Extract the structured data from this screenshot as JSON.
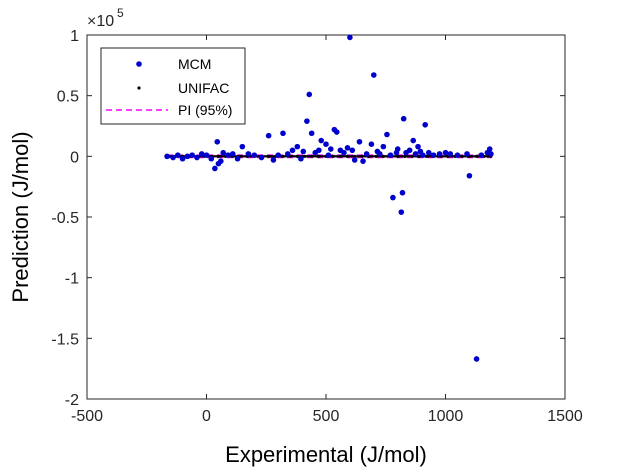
{
  "chart_data": {
    "type": "scatter",
    "xlabel": "Experimental (J/mol)",
    "ylabel": "Prediction (J/mol)",
    "xlim": [
      -500,
      1500
    ],
    "ylim": [
      -2,
      1
    ],
    "y_multiplier_label": {
      "base": "×10",
      "exponent": "5"
    },
    "xticks": [
      "-500",
      "0",
      "500",
      "1000",
      "1500"
    ],
    "yticks": [
      "1",
      "0.5",
      "0",
      "-0.5",
      "-1",
      "-1.5",
      "-2"
    ],
    "xtick_values": [
      -500,
      0,
      500,
      1000,
      1500
    ],
    "ytick_values": [
      1,
      0.5,
      0,
      -0.5,
      -1,
      -1.5,
      -2
    ],
    "grid": false,
    "legend_placement": "top-left",
    "series": [
      {
        "name": "MCM",
        "color": "#0000cc",
        "marker": "dot",
        "points": [
          [
            -165,
            0.0
          ],
          [
            -140,
            -0.01
          ],
          [
            -120,
            0.01
          ],
          [
            -100,
            -0.02
          ],
          [
            -80,
            0.0
          ],
          [
            -60,
            0.01
          ],
          [
            -40,
            -0.01
          ],
          [
            -20,
            0.02
          ],
          [
            0,
            0.01
          ],
          [
            20,
            -0.02
          ],
          [
            35,
            -0.1
          ],
          [
            45,
            0.12
          ],
          [
            50,
            -0.06
          ],
          [
            60,
            -0.04
          ],
          [
            70,
            0.03
          ],
          [
            90,
            0.01
          ],
          [
            110,
            0.02
          ],
          [
            130,
            -0.02
          ],
          [
            150,
            0.08
          ],
          [
            175,
            0.02
          ],
          [
            200,
            0.01
          ],
          [
            230,
            -0.01
          ],
          [
            260,
            0.17
          ],
          [
            280,
            -0.03
          ],
          [
            300,
            0.01
          ],
          [
            320,
            0.19
          ],
          [
            340,
            0.02
          ],
          [
            360,
            0.05
          ],
          [
            380,
            0.08
          ],
          [
            395,
            -0.02
          ],
          [
            405,
            0.04
          ],
          [
            420,
            0.29
          ],
          [
            430,
            0.51
          ],
          [
            440,
            0.19
          ],
          [
            455,
            0.03
          ],
          [
            470,
            0.05
          ],
          [
            480,
            0.13
          ],
          [
            500,
            0.1
          ],
          [
            510,
            0.01
          ],
          [
            520,
            0.06
          ],
          [
            535,
            0.22
          ],
          [
            545,
            0.2
          ],
          [
            560,
            0.05
          ],
          [
            575,
            0.03
          ],
          [
            590,
            0.07
          ],
          [
            600,
            0.98
          ],
          [
            610,
            0.05
          ],
          [
            620,
            -0.03
          ],
          [
            640,
            0.12
          ],
          [
            655,
            -0.04
          ],
          [
            670,
            0.02
          ],
          [
            690,
            0.1
          ],
          [
            700,
            0.67
          ],
          [
            715,
            0.04
          ],
          [
            725,
            0.02
          ],
          [
            740,
            0.08
          ],
          [
            755,
            0.18
          ],
          [
            770,
            0.01
          ],
          [
            780,
            -0.34
          ],
          [
            795,
            0.03
          ],
          [
            800,
            0.06
          ],
          [
            815,
            -0.46
          ],
          [
            820,
            -0.3
          ],
          [
            825,
            0.31
          ],
          [
            835,
            0.03
          ],
          [
            850,
            0.05
          ],
          [
            865,
            0.13
          ],
          [
            875,
            0.02
          ],
          [
            885,
            0.08
          ],
          [
            895,
            0.04
          ],
          [
            905,
            0.01
          ],
          [
            915,
            0.26
          ],
          [
            930,
            0.03
          ],
          [
            950,
            0.01
          ],
          [
            975,
            0.02
          ],
          [
            1000,
            0.03
          ],
          [
            1020,
            0.02
          ],
          [
            1050,
            0.01
          ],
          [
            1090,
            0.02
          ],
          [
            1100,
            -0.16
          ],
          [
            1130,
            -1.67
          ],
          [
            1150,
            0.01
          ],
          [
            1175,
            0.03
          ],
          [
            1185,
            0.06
          ],
          [
            1190,
            0.02
          ]
        ]
      },
      {
        "name": "UNIFAC",
        "color": "#000000",
        "marker": "small-dot",
        "points": [
          [
            -160,
            0.0
          ],
          [
            -130,
            0.0
          ],
          [
            -100,
            0.0
          ],
          [
            -70,
            0.0
          ],
          [
            -40,
            0.0
          ],
          [
            -10,
            0.0
          ],
          [
            20,
            0.0
          ],
          [
            50,
            0.0
          ],
          [
            80,
            0.0
          ],
          [
            110,
            0.0
          ],
          [
            140,
            0.0
          ],
          [
            170,
            0.0
          ],
          [
            200,
            0.0
          ],
          [
            230,
            0.0
          ],
          [
            260,
            0.0
          ],
          [
            290,
            0.0
          ],
          [
            320,
            0.0
          ],
          [
            350,
            0.0
          ],
          [
            380,
            0.0
          ],
          [
            410,
            0.0
          ],
          [
            440,
            0.0
          ],
          [
            470,
            0.0
          ],
          [
            500,
            0.0
          ],
          [
            530,
            0.0
          ],
          [
            560,
            0.0
          ],
          [
            590,
            0.0
          ],
          [
            620,
            0.0
          ],
          [
            650,
            0.0
          ],
          [
            680,
            0.0
          ],
          [
            710,
            0.0
          ],
          [
            740,
            0.0
          ],
          [
            770,
            0.0
          ],
          [
            800,
            0.0
          ],
          [
            830,
            0.0
          ],
          [
            860,
            0.0
          ],
          [
            890,
            0.0
          ],
          [
            920,
            0.0
          ],
          [
            950,
            0.0
          ],
          [
            980,
            0.0
          ],
          [
            1010,
            0.0
          ],
          [
            1040,
            0.0
          ],
          [
            1070,
            0.0
          ],
          [
            1100,
            0.0
          ],
          [
            1130,
            0.0
          ],
          [
            1160,
            0.0
          ],
          [
            1190,
            0.0
          ]
        ]
      },
      {
        "name": "PI (95%)",
        "color": "#ff00ff",
        "marker": "dashed-line",
        "lines": [
          [
            [
              -165,
              0.01
            ],
            [
              1190,
              0.01
            ]
          ],
          [
            [
              -165,
              -0.01
            ],
            [
              1190,
              -0.01
            ]
          ]
        ]
      }
    ]
  }
}
